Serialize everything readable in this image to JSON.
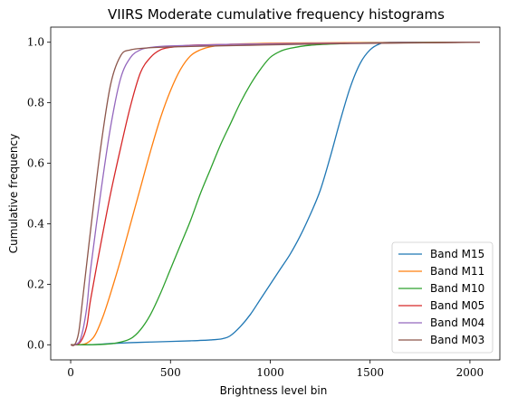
{
  "chart_data": {
    "type": "line",
    "title": "VIIRS Moderate cumulative frequency histograms",
    "xlabel": "Brightness level bin",
    "ylabel": "Cumulative frequency",
    "xlim": [
      -100,
      2150
    ],
    "ylim": [
      -0.05,
      1.05
    ],
    "x_ticks": [
      0,
      500,
      1000,
      1500,
      2000
    ],
    "y_ticks": [
      0.0,
      0.2,
      0.4,
      0.6,
      0.8,
      1.0
    ],
    "x_tick_labels": [
      "0",
      "500",
      "1000",
      "1500",
      "2000"
    ],
    "y_tick_labels": [
      "0.0",
      "0.2",
      "0.4",
      "0.6",
      "0.8",
      "1.0"
    ],
    "grid": false,
    "legend_position": "lower right",
    "series": [
      {
        "name": "Band M15",
        "color": "#1f77b4",
        "points": [
          [
            0,
            0
          ],
          [
            100,
            0.0
          ],
          [
            200,
            0.004
          ],
          [
            300,
            0.007
          ],
          [
            400,
            0.009
          ],
          [
            500,
            0.011
          ],
          [
            600,
            0.013
          ],
          [
            700,
            0.016
          ],
          [
            760,
            0.02
          ],
          [
            800,
            0.03
          ],
          [
            850,
            0.06
          ],
          [
            900,
            0.1
          ],
          [
            950,
            0.15
          ],
          [
            1000,
            0.2
          ],
          [
            1050,
            0.25
          ],
          [
            1100,
            0.3
          ],
          [
            1150,
            0.36
          ],
          [
            1200,
            0.43
          ],
          [
            1250,
            0.51
          ],
          [
            1300,
            0.62
          ],
          [
            1350,
            0.74
          ],
          [
            1400,
            0.85
          ],
          [
            1450,
            0.93
          ],
          [
            1500,
            0.975
          ],
          [
            1550,
            0.995
          ],
          [
            1600,
            1.0
          ],
          [
            1800,
            1.0
          ],
          [
            2050,
            1.0
          ]
        ]
      },
      {
        "name": "Band M11",
        "color": "#ff7f0e",
        "points": [
          [
            0,
            0
          ],
          [
            40,
            0.0
          ],
          [
            80,
            0.005
          ],
          [
            120,
            0.03
          ],
          [
            160,
            0.09
          ],
          [
            200,
            0.17
          ],
          [
            250,
            0.28
          ],
          [
            300,
            0.4
          ],
          [
            350,
            0.52
          ],
          [
            400,
            0.64
          ],
          [
            450,
            0.75
          ],
          [
            500,
            0.84
          ],
          [
            550,
            0.91
          ],
          [
            600,
            0.955
          ],
          [
            650,
            0.975
          ],
          [
            700,
            0.985
          ],
          [
            800,
            0.993
          ],
          [
            1000,
            0.997
          ],
          [
            1200,
            0.998
          ],
          [
            1500,
            0.999
          ],
          [
            2050,
            1.0
          ]
        ]
      },
      {
        "name": "Band M10",
        "color": "#2ca02c",
        "points": [
          [
            0,
            0
          ],
          [
            150,
            0.001
          ],
          [
            230,
            0.006
          ],
          [
            300,
            0.02
          ],
          [
            350,
            0.05
          ],
          [
            400,
            0.1
          ],
          [
            450,
            0.17
          ],
          [
            500,
            0.25
          ],
          [
            550,
            0.33
          ],
          [
            600,
            0.41
          ],
          [
            650,
            0.5
          ],
          [
            700,
            0.58
          ],
          [
            750,
            0.66
          ],
          [
            800,
            0.73
          ],
          [
            850,
            0.8
          ],
          [
            900,
            0.86
          ],
          [
            950,
            0.91
          ],
          [
            1000,
            0.95
          ],
          [
            1050,
            0.97
          ],
          [
            1100,
            0.98
          ],
          [
            1200,
            0.99
          ],
          [
            1350,
            0.995
          ],
          [
            1500,
            0.998
          ],
          [
            2050,
            1.0
          ]
        ]
      },
      {
        "name": "Band M05",
        "color": "#d62728",
        "points": [
          [
            0,
            0
          ],
          [
            20,
            0.0
          ],
          [
            50,
            0.01
          ],
          [
            80,
            0.06
          ],
          [
            100,
            0.15
          ],
          [
            150,
            0.33
          ],
          [
            200,
            0.5
          ],
          [
            250,
            0.65
          ],
          [
            300,
            0.79
          ],
          [
            350,
            0.9
          ],
          [
            400,
            0.95
          ],
          [
            450,
            0.975
          ],
          [
            500,
            0.983
          ],
          [
            600,
            0.99
          ],
          [
            800,
            0.993
          ],
          [
            1200,
            0.996
          ],
          [
            2050,
            1.0
          ]
        ]
      },
      {
        "name": "Band M04",
        "color": "#9467bd",
        "points": [
          [
            0,
            0
          ],
          [
            20,
            0.0
          ],
          [
            50,
            0.02
          ],
          [
            80,
            0.12
          ],
          [
            100,
            0.25
          ],
          [
            150,
            0.5
          ],
          [
            200,
            0.72
          ],
          [
            250,
            0.88
          ],
          [
            300,
            0.95
          ],
          [
            350,
            0.975
          ],
          [
            400,
            0.983
          ],
          [
            500,
            0.988
          ],
          [
            800,
            0.993
          ],
          [
            1200,
            0.996
          ],
          [
            2050,
            1.0
          ]
        ]
      },
      {
        "name": "Band M03",
        "color": "#8c564b",
        "points": [
          [
            0,
            0
          ],
          [
            20,
            0.0
          ],
          [
            40,
            0.04
          ],
          [
            60,
            0.15
          ],
          [
            100,
            0.38
          ],
          [
            150,
            0.65
          ],
          [
            200,
            0.86
          ],
          [
            250,
            0.955
          ],
          [
            300,
            0.975
          ],
          [
            400,
            0.982
          ],
          [
            600,
            0.986
          ],
          [
            900,
            0.99
          ],
          [
            1300,
            0.995
          ],
          [
            2050,
            1.0
          ]
        ]
      }
    ]
  }
}
